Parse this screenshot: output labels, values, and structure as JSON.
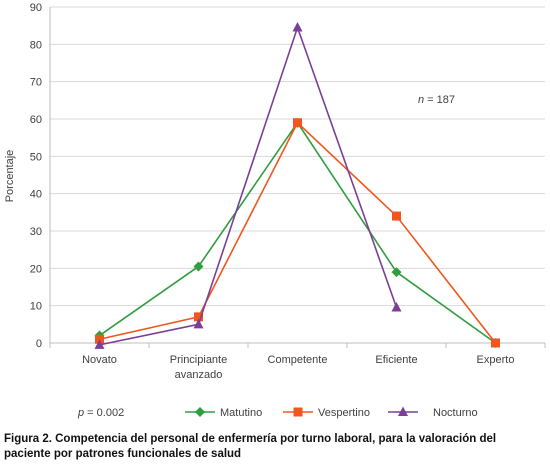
{
  "chart_data": {
    "type": "line",
    "categories": [
      "Novato",
      "Principiante avanzado",
      "Competente",
      "Eficiente",
      "Experto"
    ],
    "category_labels": [
      [
        "Novato"
      ],
      [
        "Principiante",
        "avanzado"
      ],
      [
        "Competente"
      ],
      [
        "Eficiente"
      ],
      [
        "Experto"
      ]
    ],
    "ylabel": "Porcentaje",
    "ylim": [
      0,
      90
    ],
    "yticks": [
      0,
      10,
      20,
      30,
      40,
      50,
      60,
      70,
      80,
      90
    ],
    "grid": true,
    "series": [
      {
        "name": "Matutino",
        "color": "#2e9e3e",
        "marker": "diamond",
        "values": [
          2,
          20.5,
          59,
          19,
          0
        ]
      },
      {
        "name": "Vespertino",
        "color": "#f0561e",
        "marker": "square",
        "values": [
          1,
          7,
          59,
          34,
          0
        ]
      },
      {
        "name": "Nocturno",
        "color": "#7b3f98",
        "marker": "triangle",
        "values": [
          -0.5,
          5,
          84.5,
          9.5,
          null
        ]
      }
    ],
    "annotations": {
      "n_prefix": "n",
      "n_suffix": " = 187",
      "p_prefix": "p",
      "p_suffix": " = 0.002"
    },
    "legend_position": "bottom"
  },
  "caption": "Figura 2. Competencia del personal de enfermería por turno laboral, para la valoración del paciente por patrones funcionales de salud"
}
